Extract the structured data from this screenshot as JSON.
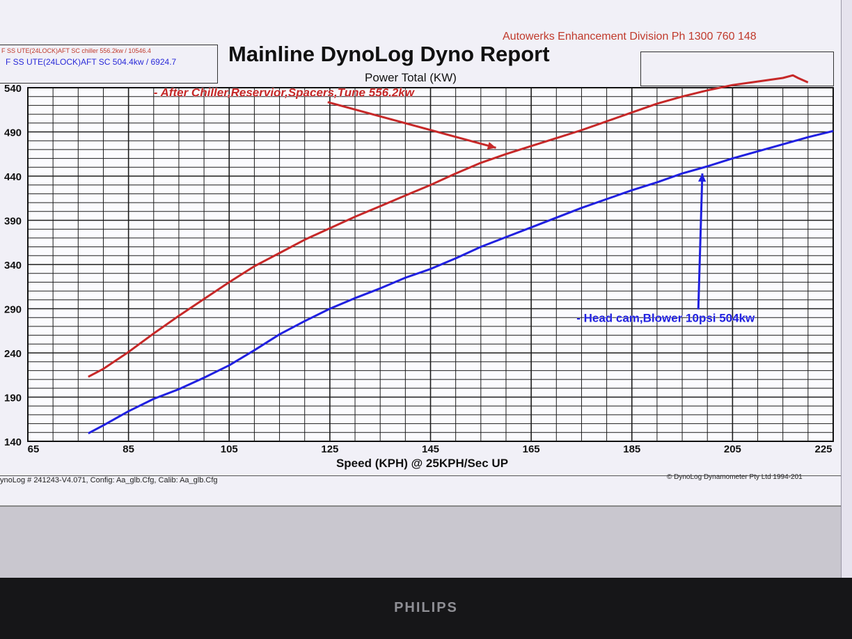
{
  "header": {
    "company": "Autowerks Enhancement Division  Ph 1300 760 148",
    "title": "Mainline DynoLog Dyno Report",
    "subtitle": "Power Total (KW)"
  },
  "legend": {
    "run1": "F SS UTE(24LOCK)AFT SC chiller 556.2kw / 10546.4",
    "run2": "F SS UTE(24LOCK)AFT SC 504.4kw / 6924.7"
  },
  "footer": {
    "left": "ynoLog # 241243-V4.071, Config: Aa_glb.Cfg, Calib: Aa_glb.Cfg",
    "right": "© DynoLog Dynamometer Pty Ltd 1994-201"
  },
  "monitor": {
    "brand": "PHILIPS"
  },
  "colors": {
    "red": "#c62828",
    "blue": "#2020e0"
  },
  "chart_data": {
    "type": "line",
    "title": "Power Total (KW)",
    "xlabel": "Speed (KPH) @ 25KPH/Sec UP",
    "ylabel": "",
    "xlim": [
      65,
      225
    ],
    "ylim": [
      140,
      540
    ],
    "xticks": [
      65,
      85,
      105,
      125,
      145,
      165,
      185,
      205,
      225
    ],
    "yticks": [
      140,
      190,
      240,
      290,
      340,
      390,
      440,
      490,
      540
    ],
    "grid": true,
    "series": [
      {
        "name": "F SS UTE(24LOCK)AFT SC chiller 556.2kw / 10546.4",
        "color": "#c62828",
        "x": [
          77,
          80,
          85,
          90,
          95,
          100,
          105,
          110,
          115,
          120,
          125,
          130,
          135,
          140,
          145,
          150,
          155,
          160,
          165,
          170,
          175,
          180,
          185,
          190,
          195,
          200,
          205,
          210,
          215,
          217,
          218,
          220
        ],
        "y": [
          213,
          222,
          241,
          262,
          282,
          301,
          320,
          338,
          353,
          368,
          381,
          394,
          406,
          418,
          430,
          443,
          455,
          465,
          474,
          483,
          492,
          502,
          512,
          522,
          530,
          537,
          543,
          547,
          551,
          554,
          551,
          546
        ]
      },
      {
        "name": "F SS UTE(24LOCK)AFT SC 504.4kw / 6924.7",
        "color": "#2020e0",
        "x": [
          77,
          80,
          85,
          90,
          95,
          100,
          105,
          110,
          115,
          120,
          125,
          130,
          135,
          140,
          145,
          150,
          155,
          160,
          165,
          170,
          175,
          180,
          185,
          190,
          195,
          200,
          205,
          210,
          215,
          220,
          225
        ],
        "y": [
          149,
          158,
          174,
          188,
          199,
          212,
          226,
          243,
          261,
          276,
          290,
          302,
          313,
          325,
          335,
          347,
          360,
          371,
          382,
          393,
          404,
          414,
          424,
          433,
          443,
          451,
          460,
          468,
          476,
          484,
          491
        ]
      }
    ],
    "annotations": [
      {
        "text": "- After Chiller,Reservior,Spacers,Tune 556.2kw",
        "color": "#c62828",
        "x": 90,
        "y": 530,
        "arrow_to": [
          158,
          472
        ]
      },
      {
        "text": "- Head cam,Blower 10psi 504kw",
        "color": "#2020e0",
        "x": 174,
        "y": 275,
        "arrow_to": [
          199,
          443
        ]
      }
    ]
  }
}
